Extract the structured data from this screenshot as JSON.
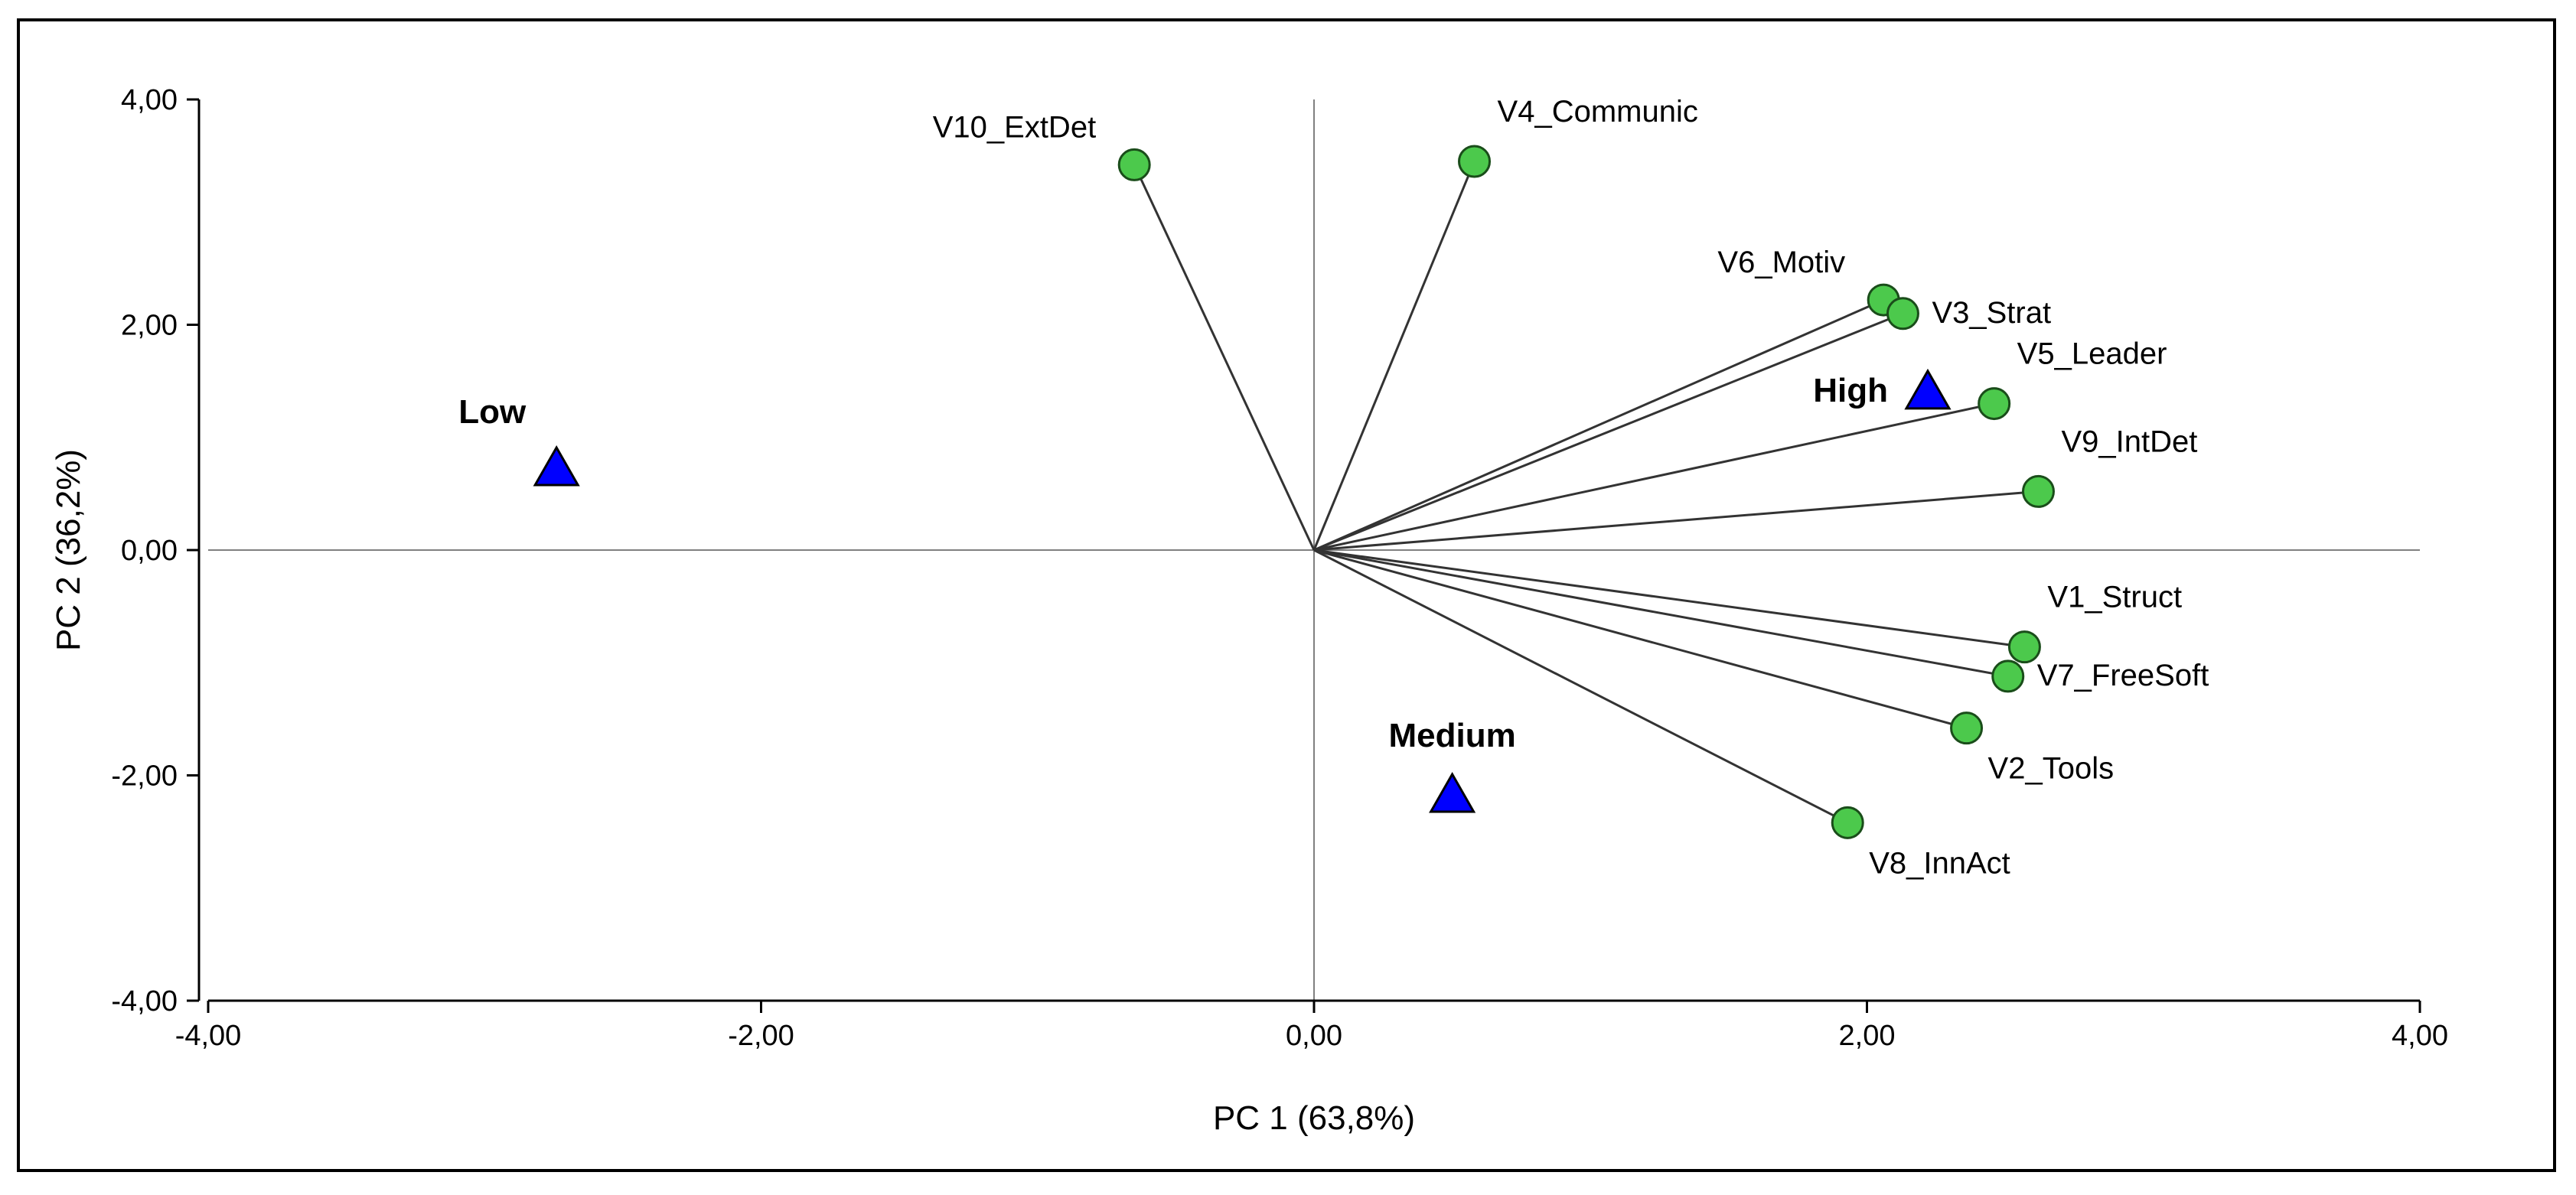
{
  "chart_data": {
    "type": "scatter",
    "subtype": "biplot",
    "title": "",
    "xlabel": "PC 1 (63,8%)",
    "ylabel": "PC 2 (36,2%)",
    "xlim": [
      -4,
      4
    ],
    "ylim": [
      -4,
      4
    ],
    "xticks": [
      {
        "value": -4,
        "label": "-4,00"
      },
      {
        "value": -2,
        "label": "-2,00"
      },
      {
        "value": 0,
        "label": "0,00"
      },
      {
        "value": 2,
        "label": "2,00"
      },
      {
        "value": 4,
        "label": "4,00"
      }
    ],
    "yticks": [
      {
        "value": 4,
        "label": "4,00"
      },
      {
        "value": 2,
        "label": "2,00"
      },
      {
        "value": 0,
        "label": "0,00"
      },
      {
        "value": -2,
        "label": "-2,00"
      },
      {
        "value": -4,
        "label": "-4,00"
      }
    ],
    "grid": false,
    "reference_lines": {
      "x": 0,
      "y": 0
    },
    "variables": [
      {
        "name": "V10_ExtDet",
        "x": -0.65,
        "y": 3.42,
        "label_pos": "upper-left"
      },
      {
        "name": "V4_Communic",
        "x": 0.58,
        "y": 3.45,
        "label_pos": "upper-right"
      },
      {
        "name": "V6_Motiv",
        "x": 2.06,
        "y": 2.22,
        "label_pos": "upper-left"
      },
      {
        "name": "V3_Strat",
        "x": 2.13,
        "y": 2.1,
        "label_pos": "right"
      },
      {
        "name": "V5_Leader",
        "x": 2.46,
        "y": 1.3,
        "label_pos": "upper-right"
      },
      {
        "name": "V9_IntDet",
        "x": 2.62,
        "y": 0.52,
        "label_pos": "upper-right"
      },
      {
        "name": "V1_Struct",
        "x": 2.57,
        "y": -0.86,
        "label_pos": "upper-right"
      },
      {
        "name": "V7_FreeSoft",
        "x": 2.51,
        "y": -1.12,
        "label_pos": "right"
      },
      {
        "name": "V2_Tools",
        "x": 2.36,
        "y": -1.58,
        "label_pos": "lower-right"
      },
      {
        "name": "V8_InnAct",
        "x": 1.93,
        "y": -2.42,
        "label_pos": "lower-right"
      }
    ],
    "groups": [
      {
        "name": "Low",
        "x": -2.74,
        "y": 0.72,
        "label_pos": "upper-left"
      },
      {
        "name": "High",
        "x": 2.22,
        "y": 1.4,
        "label_pos": "left"
      },
      {
        "name": "Medium",
        "x": 0.5,
        "y": -2.18,
        "label_pos": "upper"
      }
    ],
    "colors": {
      "variable_marker": "#4cc94c",
      "group_marker": "#0000ff",
      "vector_line": "#333333",
      "axes": "#000000"
    }
  }
}
